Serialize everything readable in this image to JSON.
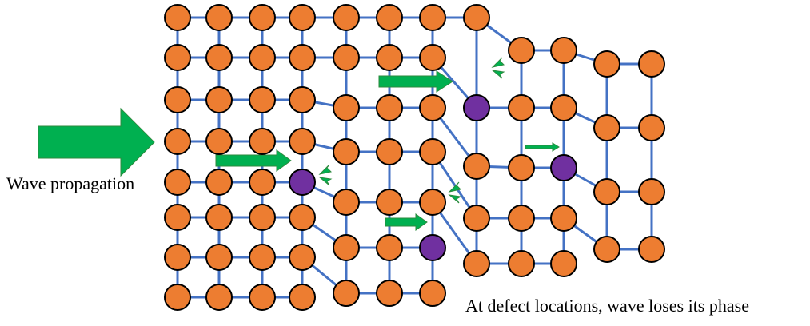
{
  "labels": {
    "wave_propagation": "Wave propagation",
    "defect_note": "At defect locations, wave loses its phase"
  },
  "colors": {
    "atom": "#ed7d31",
    "defect_atom": "#7030a0",
    "bond": "#4472c4",
    "arrow": "#00b050",
    "outline": "#000000"
  },
  "legend_semantics": {
    "orange_circle": "atom",
    "purple_circle": "defect atom",
    "green_arrow": "wave direction"
  }
}
